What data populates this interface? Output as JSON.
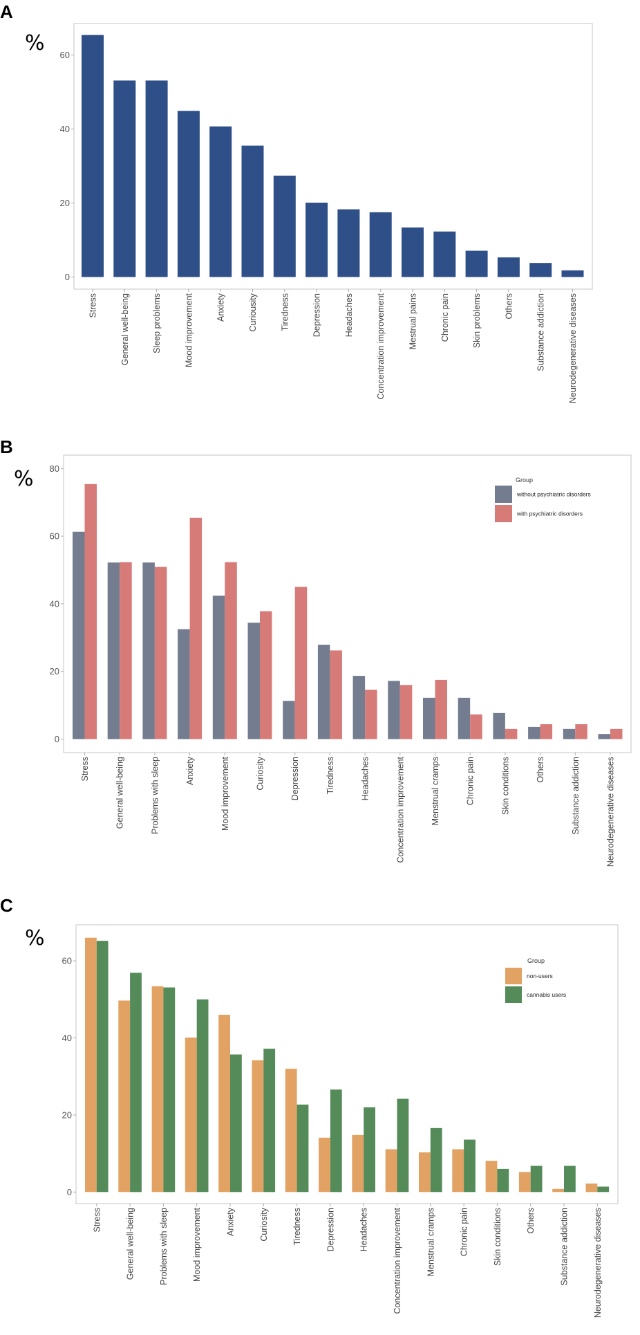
{
  "chart_data": [
    {
      "panel": "A",
      "type": "bar",
      "ylabel": "%",
      "ylim": [
        0,
        68
      ],
      "yticks": [
        0,
        20,
        40,
        60
      ],
      "grid": false,
      "colors": [
        "#2e4f87"
      ],
      "categories": [
        "Stress",
        "General well-being",
        "Sleep problems",
        "Mood improvement",
        "Anxiety",
        "Curiousity",
        "Tiredness",
        "Depression",
        "Headaches",
        "Concentration improvement",
        "Mestrual pains",
        "Chronic pain",
        "Skin problems",
        "Others",
        "Substance addiction",
        "Neurodegenerative diseases"
      ],
      "series": [
        {
          "values": [
            65.4,
            53.1,
            53.1,
            44.9,
            40.7,
            35.5,
            27.4,
            20.1,
            18.3,
            17.5,
            13.4,
            12.3,
            7.1,
            5.3,
            3.8,
            1.8
          ]
        }
      ]
    },
    {
      "panel": "B",
      "type": "bar",
      "ylabel": "%",
      "ylim": [
        0,
        82
      ],
      "yticks": [
        0,
        20,
        40,
        60,
        80
      ],
      "grid": false,
      "legend_title": "Group",
      "legend_position": "top-right",
      "colors": [
        "#737d8f",
        "#d77b79"
      ],
      "categories": [
        "Stress",
        "General well-being",
        "Problems with sleep",
        "Anxiety",
        "Mood improvement",
        "Curiosity",
        "Depression",
        "Tiredness",
        "Headaches",
        "Concentration improvement",
        "Menstrual cramps",
        "Chronic pain",
        "Skin conditions",
        "Others",
        "Substance addiction",
        "Neurodegenerative diseases"
      ],
      "series": [
        {
          "name": "without psychiatric disorders",
          "values": [
            61.3,
            52.2,
            52.2,
            32.5,
            42.4,
            34.4,
            11.3,
            27.9,
            18.7,
            17.2,
            12.2,
            12.2,
            7.7,
            3.6,
            3.0,
            1.5
          ]
        },
        {
          "name": "with psychiatric disorders",
          "values": [
            75.4,
            52.3,
            50.9,
            65.4,
            52.3,
            37.8,
            45.0,
            26.2,
            14.6,
            16.0,
            17.5,
            7.3,
            3.0,
            4.4,
            4.4,
            3.0
          ]
        }
      ]
    },
    {
      "panel": "C",
      "type": "bar",
      "ylabel": "%",
      "ylim": [
        0,
        69
      ],
      "yticks": [
        0,
        20,
        40,
        60
      ],
      "grid": false,
      "legend_title": "Group",
      "legend_position": "top-right",
      "colors": [
        "#e2a263",
        "#548b59"
      ],
      "categories": [
        "Stress",
        "General well-being",
        "Problems with sleep",
        "Mood improvement",
        "Anxiety",
        "Curiosity",
        "Tiredness",
        "Depression",
        "Headaches",
        "Concentration improvement",
        "Menstrual cramps",
        "Chronic pain",
        "Skin conditions",
        "Others",
        "Substance addiction",
        "Neurodegenerative diseases"
      ],
      "series": [
        {
          "name": "non-users",
          "values": [
            66.0,
            49.7,
            53.4,
            40.1,
            46.0,
            34.2,
            32.0,
            14.1,
            14.8,
            11.1,
            10.3,
            11.1,
            8.1,
            5.2,
            0.8,
            2.2
          ]
        },
        {
          "name": "cannabis users",
          "values": [
            65.2,
            56.9,
            53.1,
            50.0,
            35.7,
            37.2,
            22.7,
            26.6,
            22.0,
            24.2,
            16.6,
            13.6,
            6.0,
            6.8,
            6.8,
            1.4
          ]
        }
      ]
    }
  ]
}
